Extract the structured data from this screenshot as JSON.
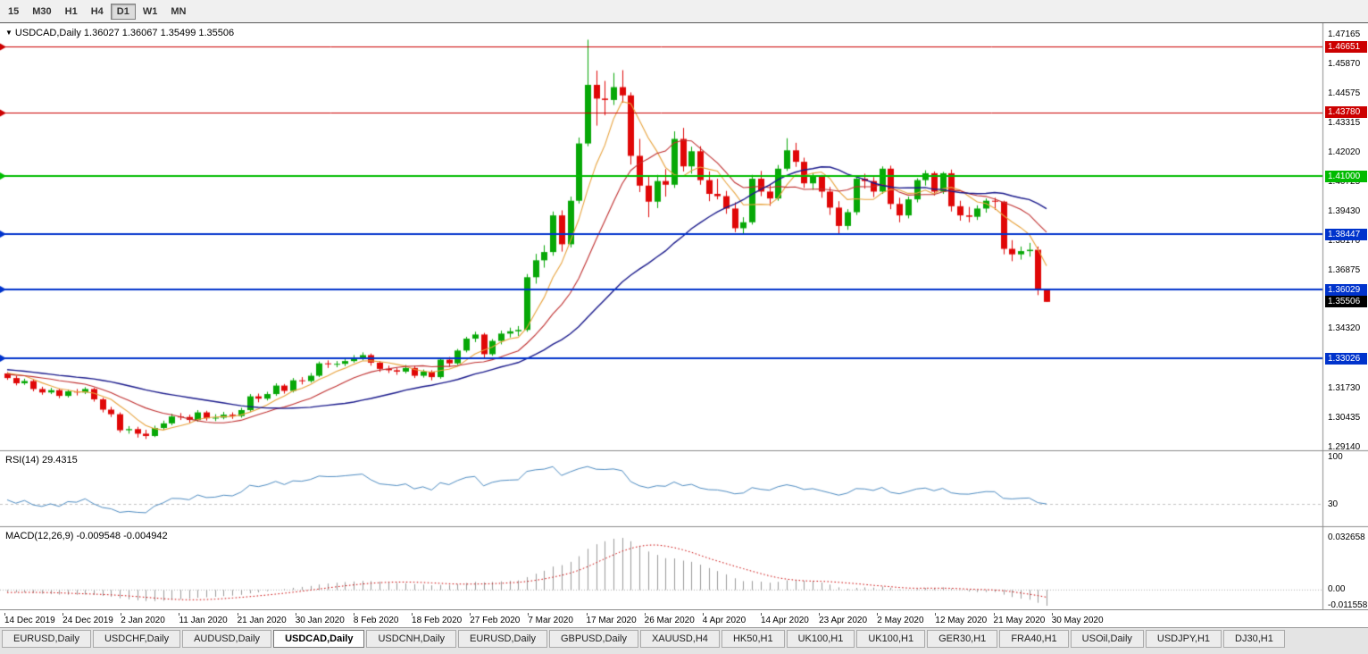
{
  "toolbar": {
    "timeframes": [
      {
        "label": "15",
        "active": false
      },
      {
        "label": "M30",
        "active": false
      },
      {
        "label": "H1",
        "active": false
      },
      {
        "label": "H4",
        "active": false
      },
      {
        "label": "D1",
        "active": true
      },
      {
        "label": "W1",
        "active": false
      },
      {
        "label": "MN",
        "active": false
      }
    ]
  },
  "chart": {
    "collapse_icon": "▼",
    "symbol": "USDCAD,Daily",
    "info": "USDCAD,Daily 1.36027 1.36067 1.35499 1.35506"
  },
  "indicators": {
    "rsi_label": "RSI(14) 29.4315",
    "macd_label": "MACD(12,26,9) -0.009548 -0.004942"
  },
  "tabs": {
    "active_index": 3,
    "items": [
      {
        "label": "EURUSD,Daily"
      },
      {
        "label": "USDCHF,Daily"
      },
      {
        "label": "AUDUSD,Daily"
      },
      {
        "label": "USDCAD,Daily"
      },
      {
        "label": "USDCNH,Daily"
      },
      {
        "label": "EURUSD,Daily"
      },
      {
        "label": "GBPUSD,Daily"
      },
      {
        "label": "XAUUSD,H4"
      },
      {
        "label": "HK50,H1"
      },
      {
        "label": "UK100,H1"
      },
      {
        "label": "UK100,H1"
      },
      {
        "label": "GER30,H1"
      },
      {
        "label": "FRA40,H1"
      },
      {
        "label": "USOil,Daily"
      },
      {
        "label": "USDJPY,H1"
      },
      {
        "label": "DJ30,H1"
      }
    ]
  },
  "chart_data": {
    "type": "candlestick",
    "symbol": "USDCAD",
    "timeframe": "Daily",
    "ohlc": {
      "open": 1.36027,
      "high": 1.36067,
      "low": 1.35499,
      "close": 1.35506
    },
    "ylim": [
      1.2915,
      1.476
    ],
    "up_color": "#07a807",
    "down_color": "#e00707",
    "x_labels": [
      "14 Dec 2019",
      "24 Dec 2019",
      "2 Jan 2020",
      "11 Jan 2020",
      "21 Jan 2020",
      "30 Jan 2020",
      "8 Feb 2020",
      "18 Feb 2020",
      "27 Feb 2020",
      "7 Mar 2020",
      "17 Mar 2020",
      "26 Mar 2020",
      "4 Apr 2020",
      "14 Apr 2020",
      "23 Apr 2020",
      "2 May 2020",
      "12 May 2020",
      "21 May 2020",
      "30 May 2020"
    ],
    "price_axis_labels": [
      "1.47165",
      "1.45870",
      "1.44575",
      "1.43315",
      "1.42020",
      "1.40725",
      "1.39430",
      "1.38170",
      "1.36875",
      "1.34320",
      "1.31730",
      "1.30435",
      "1.29140"
    ],
    "hlines": [
      {
        "price": 1.46651,
        "label": "1.46651",
        "color": "#cc0000",
        "width": 1
      },
      {
        "price": 1.4378,
        "label": "1.43780",
        "color": "#cc0000",
        "width": 1
      },
      {
        "price": 1.41,
        "label": "1.41000",
        "color": "#00bb00",
        "width": 2
      },
      {
        "price": 1.38447,
        "label": "1.38447",
        "color": "#0033cc",
        "width": 2
      },
      {
        "price": 1.36029,
        "label": "1.36029",
        "color": "#0033cc",
        "width": 2
      },
      {
        "price": 1.33026,
        "label": "1.33026",
        "color": "#0033cc",
        "width": 2
      }
    ],
    "current_price_tag": {
      "price": 1.35506,
      "label": "1.35506",
      "bg": "#000000"
    },
    "moving_averages": [
      {
        "period": 6,
        "color": "#e8a33d"
      },
      {
        "period": 13,
        "color": "#c03030"
      },
      {
        "period": 30,
        "color": "#1a1a8c"
      }
    ],
    "warmup_closes": [
      1.3308,
      1.3298,
      1.3312,
      1.3302,
      1.329,
      1.3296,
      1.3282,
      1.3272,
      1.3284,
      1.327,
      1.3258,
      1.3264,
      1.325,
      1.3242,
      1.3254,
      1.3246,
      1.324,
      1.3232,
      1.3244,
      1.3236,
      1.323,
      1.3222,
      1.3234,
      1.3226,
      1.322,
      1.3228,
      1.3242,
      1.326,
      1.3248,
      1.3242
    ],
    "candles": [
      [
        1.3238,
        1.3244,
        1.321,
        1.3218
      ],
      [
        1.3218,
        1.3228,
        1.3186,
        1.3195
      ],
      [
        1.3195,
        1.3215,
        1.3188,
        1.3205
      ],
      [
        1.3205,
        1.3212,
        1.316,
        1.317
      ],
      [
        1.317,
        1.318,
        1.3145,
        1.3155
      ],
      [
        1.3155,
        1.3175,
        1.3148,
        1.3165
      ],
      [
        1.3165,
        1.3172,
        1.313,
        1.314
      ],
      [
        1.314,
        1.3168,
        1.3133,
        1.316
      ],
      [
        1.316,
        1.317,
        1.3142,
        1.3155
      ],
      [
        1.3155,
        1.3178,
        1.3148,
        1.317
      ],
      [
        1.317,
        1.3175,
        1.3115,
        1.3125
      ],
      [
        1.3125,
        1.3132,
        1.3068,
        1.308
      ],
      [
        1.308,
        1.3092,
        1.3048,
        1.306
      ],
      [
        1.306,
        1.3068,
        1.298,
        1.299
      ],
      [
        1.299,
        1.3008,
        1.2975,
        1.2995
      ],
      [
        1.2995,
        1.3005,
        1.2958,
        1.2975
      ],
      [
        1.2975,
        1.2992,
        1.2952,
        1.2965
      ],
      [
        1.2965,
        1.301,
        1.296,
        1.3
      ],
      [
        1.3,
        1.3032,
        1.2992,
        1.302
      ],
      [
        1.302,
        1.3062,
        1.3012,
        1.305
      ],
      [
        1.305,
        1.3065,
        1.3035,
        1.3048
      ],
      [
        1.3048,
        1.3058,
        1.3022,
        1.3035
      ],
      [
        1.3035,
        1.3078,
        1.3028,
        1.3068
      ],
      [
        1.3068,
        1.3075,
        1.3032,
        1.3042
      ],
      [
        1.3042,
        1.306,
        1.303,
        1.3045
      ],
      [
        1.3045,
        1.307,
        1.3038,
        1.3058
      ],
      [
        1.3058,
        1.3068,
        1.304,
        1.3052
      ],
      [
        1.3052,
        1.3088,
        1.3045,
        1.3078
      ],
      [
        1.3078,
        1.3148,
        1.307,
        1.3138
      ],
      [
        1.3138,
        1.315,
        1.3112,
        1.3128
      ],
      [
        1.3128,
        1.3158,
        1.312,
        1.3148
      ],
      [
        1.3148,
        1.3195,
        1.314,
        1.3185
      ],
      [
        1.3185,
        1.3192,
        1.315,
        1.3162
      ],
      [
        1.3162,
        1.3218,
        1.3155,
        1.3208
      ],
      [
        1.3208,
        1.3222,
        1.319,
        1.3205
      ],
      [
        1.3205,
        1.324,
        1.3198,
        1.3228
      ],
      [
        1.3228,
        1.329,
        1.3222,
        1.3282
      ],
      [
        1.3282,
        1.3295,
        1.3262,
        1.3278
      ],
      [
        1.3278,
        1.3292,
        1.3265,
        1.328
      ],
      [
        1.328,
        1.3302,
        1.327,
        1.3292
      ],
      [
        1.3292,
        1.3318,
        1.3285,
        1.3305
      ],
      [
        1.3305,
        1.333,
        1.3295,
        1.3318
      ],
      [
        1.3318,
        1.3325,
        1.3272,
        1.3285
      ],
      [
        1.3285,
        1.3292,
        1.3245,
        1.3258
      ],
      [
        1.3258,
        1.3272,
        1.324,
        1.3252
      ],
      [
        1.3252,
        1.3262,
        1.3232,
        1.3246
      ],
      [
        1.3246,
        1.3275,
        1.3238,
        1.3262
      ],
      [
        1.3262,
        1.327,
        1.3218,
        1.3228
      ],
      [
        1.3228,
        1.3255,
        1.322,
        1.3246
      ],
      [
        1.3246,
        1.3252,
        1.3208,
        1.3222
      ],
      [
        1.3222,
        1.3305,
        1.3215,
        1.3298
      ],
      [
        1.3298,
        1.331,
        1.3268,
        1.3282
      ],
      [
        1.3282,
        1.3345,
        1.3275,
        1.3338
      ],
      [
        1.3338,
        1.3398,
        1.333,
        1.339
      ],
      [
        1.339,
        1.342,
        1.3375,
        1.3408
      ],
      [
        1.3408,
        1.3415,
        1.3308,
        1.3322
      ],
      [
        1.3322,
        1.3388,
        1.3315,
        1.338
      ],
      [
        1.338,
        1.3425,
        1.3365,
        1.3412
      ],
      [
        1.3412,
        1.3438,
        1.3395,
        1.3422
      ],
      [
        1.3422,
        1.3445,
        1.3402,
        1.3428
      ],
      [
        1.3428,
        1.3672,
        1.342,
        1.3658
      ],
      [
        1.3658,
        1.376,
        1.363,
        1.3732
      ],
      [
        1.3732,
        1.3798,
        1.37,
        1.3768
      ],
      [
        1.3768,
        1.3945,
        1.3752,
        1.3928
      ],
      [
        1.3928,
        1.395,
        1.377,
        1.3802
      ],
      [
        1.3802,
        1.401,
        1.3788,
        1.3992
      ],
      [
        1.3992,
        1.4268,
        1.398,
        1.4242
      ],
      [
        1.4242,
        1.4695,
        1.423,
        1.4498
      ],
      [
        1.4498,
        1.456,
        1.432,
        1.4438
      ],
      [
        1.4438,
        1.4515,
        1.4365,
        1.4432
      ],
      [
        1.4432,
        1.455,
        1.441,
        1.4488
      ],
      [
        1.4488,
        1.4562,
        1.442,
        1.4452
      ],
      [
        1.4452,
        1.4465,
        1.415,
        1.4188
      ],
      [
        1.4188,
        1.4262,
        1.403,
        1.4058
      ],
      [
        1.4058,
        1.4098,
        1.392,
        1.3988
      ],
      [
        1.3988,
        1.4105,
        1.396,
        1.4078
      ],
      [
        1.4078,
        1.413,
        1.401,
        1.4062
      ],
      [
        1.4062,
        1.4295,
        1.4048,
        1.4262
      ],
      [
        1.4262,
        1.431,
        1.412,
        1.4142
      ],
      [
        1.4142,
        1.4228,
        1.411,
        1.4208
      ],
      [
        1.4208,
        1.423,
        1.4062,
        1.4082
      ],
      [
        1.4082,
        1.412,
        1.399,
        1.4022
      ],
      [
        1.4022,
        1.4088,
        1.3998,
        1.4012
      ],
      [
        1.4012,
        1.4035,
        1.3935,
        1.3958
      ],
      [
        1.3958,
        1.3985,
        1.3855,
        1.3872
      ],
      [
        1.3872,
        1.392,
        1.385,
        1.3898
      ],
      [
        1.3898,
        1.4105,
        1.3888,
        1.4088
      ],
      [
        1.4088,
        1.4122,
        1.4012,
        1.4032
      ],
      [
        1.4032,
        1.4062,
        1.397,
        1.4002
      ],
      [
        1.4002,
        1.4148,
        1.3992,
        1.4132
      ],
      [
        1.4132,
        1.4265,
        1.4122,
        1.4212
      ],
      [
        1.4212,
        1.4245,
        1.414,
        1.4162
      ],
      [
        1.4162,
        1.418,
        1.4048,
        1.4068
      ],
      [
        1.4068,
        1.4112,
        1.404,
        1.4098
      ],
      [
        1.4098,
        1.4105,
        1.4005,
        1.4032
      ],
      [
        1.4032,
        1.4052,
        1.393,
        1.3962
      ],
      [
        1.3962,
        1.399,
        1.385,
        1.3882
      ],
      [
        1.3882,
        1.3955,
        1.3865,
        1.3942
      ],
      [
        1.3942,
        1.4102,
        1.393,
        1.4088
      ],
      [
        1.4088,
        1.411,
        1.4045,
        1.4078
      ],
      [
        1.4078,
        1.4095,
        1.4008,
        1.4032
      ],
      [
        1.4032,
        1.4142,
        1.4022,
        1.4132
      ],
      [
        1.4132,
        1.4145,
        1.3955,
        1.3978
      ],
      [
        1.3978,
        1.4005,
        1.3898,
        1.3928
      ],
      [
        1.3928,
        1.401,
        1.3915,
        1.3998
      ],
      [
        1.3998,
        1.409,
        1.3985,
        1.4082
      ],
      [
        1.4082,
        1.4125,
        1.4058,
        1.4112
      ],
      [
        1.4112,
        1.412,
        1.4015,
        1.4032
      ],
      [
        1.4032,
        1.4118,
        1.4022,
        1.4112
      ],
      [
        1.4112,
        1.4128,
        1.3945,
        1.3968
      ],
      [
        1.3968,
        1.3992,
        1.3905,
        1.3928
      ],
      [
        1.3928,
        1.3965,
        1.3898,
        1.3922
      ],
      [
        1.3922,
        1.3972,
        1.3908,
        1.3958
      ],
      [
        1.3958,
        1.4002,
        1.394,
        1.3992
      ],
      [
        1.3992,
        1.4005,
        1.3952,
        1.3988
      ],
      [
        1.3988,
        1.3992,
        1.3758,
        1.3782
      ],
      [
        1.3782,
        1.382,
        1.3728,
        1.3758
      ],
      [
        1.3758,
        1.3792,
        1.3735,
        1.3772
      ],
      [
        1.3772,
        1.3808,
        1.3748,
        1.3778
      ],
      [
        1.3778,
        1.3792,
        1.358,
        1.3605
      ],
      [
        1.36027,
        1.36067,
        1.35499,
        1.35506
      ]
    ],
    "rsi": {
      "period": 14,
      "value": 29.4315,
      "color": "#4e8cc2",
      "axis_labels": [
        "100",
        "30"
      ],
      "level": 30
    },
    "macd": {
      "fast": 12,
      "slow": 26,
      "signal": 9,
      "macd_value": -0.009548,
      "signal_value": -0.004942,
      "hist_color": "#9a9a9a",
      "signal_color": "#cc0000",
      "axis_labels": [
        "0.032658",
        "0.00",
        "-0.011558"
      ]
    }
  }
}
